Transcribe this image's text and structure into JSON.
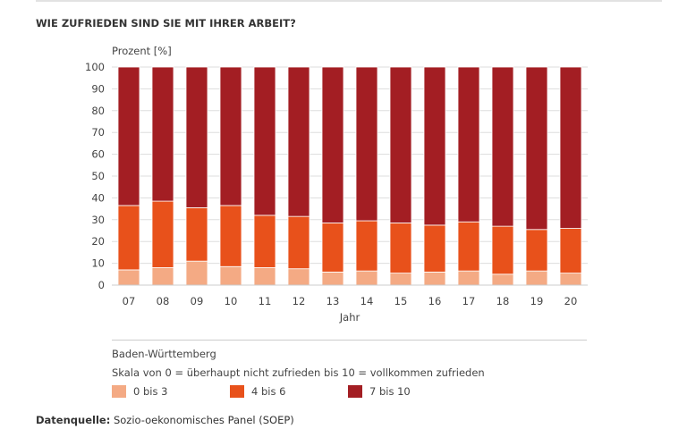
{
  "title": "WIE ZUFRIEDEN SIND SIE MIT IHRER ARBEIT?",
  "chart_data": {
    "type": "bar",
    "stacked": true,
    "ylabel": "Prozent [%]",
    "xlabel": "Jahr",
    "ylim": [
      0,
      100
    ],
    "yticks": [
      0,
      10,
      20,
      30,
      40,
      50,
      60,
      70,
      80,
      90,
      100
    ],
    "grid": true,
    "categories": [
      "07",
      "08",
      "09",
      "10",
      "11",
      "12",
      "13",
      "14",
      "15",
      "16",
      "17",
      "18",
      "19",
      "20"
    ],
    "series": [
      {
        "name": "0 bis 3",
        "color": "#f4aa84",
        "values": [
          7,
          8,
          11,
          8.5,
          8,
          7.5,
          6,
          6.5,
          5.5,
          6,
          6.5,
          5,
          6.5,
          5.5
        ]
      },
      {
        "name": "4 bis 6",
        "color": "#e8511b",
        "values": [
          29.5,
          30.5,
          24.5,
          28,
          24,
          24,
          22.5,
          23,
          23,
          21.5,
          22.5,
          22,
          19,
          20.5
        ]
      },
      {
        "name": "7 bis 10",
        "color": "#a31e23",
        "values": [
          63.5,
          61.5,
          64.5,
          63.5,
          68,
          68.5,
          71.5,
          70.5,
          71.5,
          72.5,
          71,
          73,
          74.5,
          74
        ]
      }
    ],
    "legend_position": "bottom"
  },
  "legend": {
    "region": "Baden-Württemberg",
    "scale": "Skala von 0 = überhaupt nicht zufrieden bis 10 = vollkommen zufrieden"
  },
  "source": {
    "label": "Datenquelle:",
    "text": " Sozio-oekonomisches Panel (SOEP)"
  }
}
